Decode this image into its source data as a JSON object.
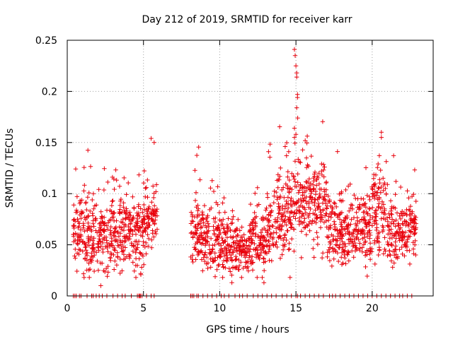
{
  "chart_data": {
    "type": "scatter",
    "title": "Day 212 of 2019, SRMTID for receiver karr",
    "xlabel": "GPS time / hours",
    "ylabel": "SRMTID / TECUs",
    "xlim": [
      0,
      24
    ],
    "ylim": [
      0,
      0.25
    ],
    "x_ticks": [
      0,
      5,
      10,
      15,
      20
    ],
    "y_ticks": [
      0,
      0.05,
      0.1,
      0.15,
      0.2,
      0.25
    ],
    "x_tick_labels": [
      "0",
      "5",
      "10",
      "15",
      "20"
    ],
    "y_tick_labels": [
      "0",
      "0.05",
      "0.1",
      "0.15",
      "0.2",
      "0.25"
    ],
    "grid": true,
    "marker": "+",
    "color": "#e8000b",
    "data_gap_hours": [
      6.0,
      8.1
    ],
    "density_profile": [
      {
        "start": 0.4,
        "end": 1.0,
        "center": 0.065,
        "spread": 0.018
      },
      {
        "start": 1.0,
        "end": 2.0,
        "center": 0.062,
        "spread": 0.02
      },
      {
        "start": 2.0,
        "end": 3.0,
        "center": 0.058,
        "spread": 0.02
      },
      {
        "start": 3.0,
        "end": 4.0,
        "center": 0.063,
        "spread": 0.02
      },
      {
        "start": 4.0,
        "end": 4.9,
        "center": 0.058,
        "spread": 0.02
      },
      {
        "start": 4.9,
        "end": 5.9,
        "center": 0.075,
        "spread": 0.016
      },
      {
        "start": 8.1,
        "end": 9.0,
        "center": 0.062,
        "spread": 0.017
      },
      {
        "start": 9.0,
        "end": 10.0,
        "center": 0.055,
        "spread": 0.016
      },
      {
        "start": 10.0,
        "end": 11.0,
        "center": 0.05,
        "spread": 0.014
      },
      {
        "start": 11.0,
        "end": 12.0,
        "center": 0.045,
        "spread": 0.012
      },
      {
        "start": 12.0,
        "end": 13.0,
        "center": 0.055,
        "spread": 0.015
      },
      {
        "start": 13.0,
        "end": 14.0,
        "center": 0.072,
        "spread": 0.02
      },
      {
        "start": 14.0,
        "end": 15.0,
        "center": 0.085,
        "spread": 0.022
      },
      {
        "start": 15.0,
        "end": 16.0,
        "center": 0.095,
        "spread": 0.02
      },
      {
        "start": 16.0,
        "end": 17.0,
        "center": 0.09,
        "spread": 0.02
      },
      {
        "start": 17.0,
        "end": 18.0,
        "center": 0.065,
        "spread": 0.016
      },
      {
        "start": 18.0,
        "end": 19.0,
        "center": 0.058,
        "spread": 0.016
      },
      {
        "start": 19.0,
        "end": 20.0,
        "center": 0.065,
        "spread": 0.018
      },
      {
        "start": 20.0,
        "end": 21.0,
        "center": 0.085,
        "spread": 0.02
      },
      {
        "start": 21.0,
        "end": 22.0,
        "center": 0.06,
        "spread": 0.016
      },
      {
        "start": 22.0,
        "end": 22.9,
        "center": 0.068,
        "spread": 0.016
      }
    ],
    "notable_points": [
      {
        "x": 14.9,
        "y": 0.241
      },
      {
        "x": 14.95,
        "y": 0.235
      },
      {
        "x": 15.0,
        "y": 0.225
      },
      {
        "x": 15.05,
        "y": 0.218
      },
      {
        "x": 15.05,
        "y": 0.214
      },
      {
        "x": 15.1,
        "y": 0.197
      },
      {
        "x": 15.1,
        "y": 0.194
      },
      {
        "x": 15.05,
        "y": 0.184
      },
      {
        "x": 14.9,
        "y": 0.164
      },
      {
        "x": 15.0,
        "y": 0.158
      },
      {
        "x": 14.9,
        "y": 0.155
      },
      {
        "x": 20.6,
        "y": 0.16
      },
      {
        "x": 20.6,
        "y": 0.155
      },
      {
        "x": 5.5,
        "y": 0.154
      },
      {
        "x": 5.7,
        "y": 0.15
      },
      {
        "x": 2.2,
        "y": 0.01
      },
      {
        "x": 10.8,
        "y": 0.013
      },
      {
        "x": 12.9,
        "y": 0.013
      }
    ],
    "zero_markers_x": [
      0.4,
      0.5,
      0.6,
      0.8,
      0.9,
      1.3,
      1.6,
      1.7,
      1.9,
      2.1,
      2.3,
      2.6,
      3.0,
      3.3,
      3.6,
      3.8,
      4.2,
      4.6,
      4.7,
      4.75,
      4.8,
      4.9,
      5.2,
      5.5,
      5.7,
      8.1,
      8.2,
      8.3,
      8.5,
      8.6,
      8.9,
      9.2,
      9.5,
      9.8,
      10.1,
      10.3,
      10.6,
      11.0,
      11.3,
      11.5,
      11.8,
      12.2,
      12.5,
      12.8,
      13.1,
      13.4,
      13.7,
      14.1,
      14.4,
      14.7,
      15.0,
      15.1,
      15.3,
      15.6,
      15.9,
      16.2,
      16.5,
      16.8,
      17.2,
      17.4,
      17.6,
      17.9,
      18.2,
      18.5,
      18.8,
      19.1,
      19.4,
      19.7,
      20.0,
      20.3,
      20.6,
      20.9,
      21.2,
      21.5,
      21.8,
      22.0,
      22.3,
      22.6
    ]
  }
}
